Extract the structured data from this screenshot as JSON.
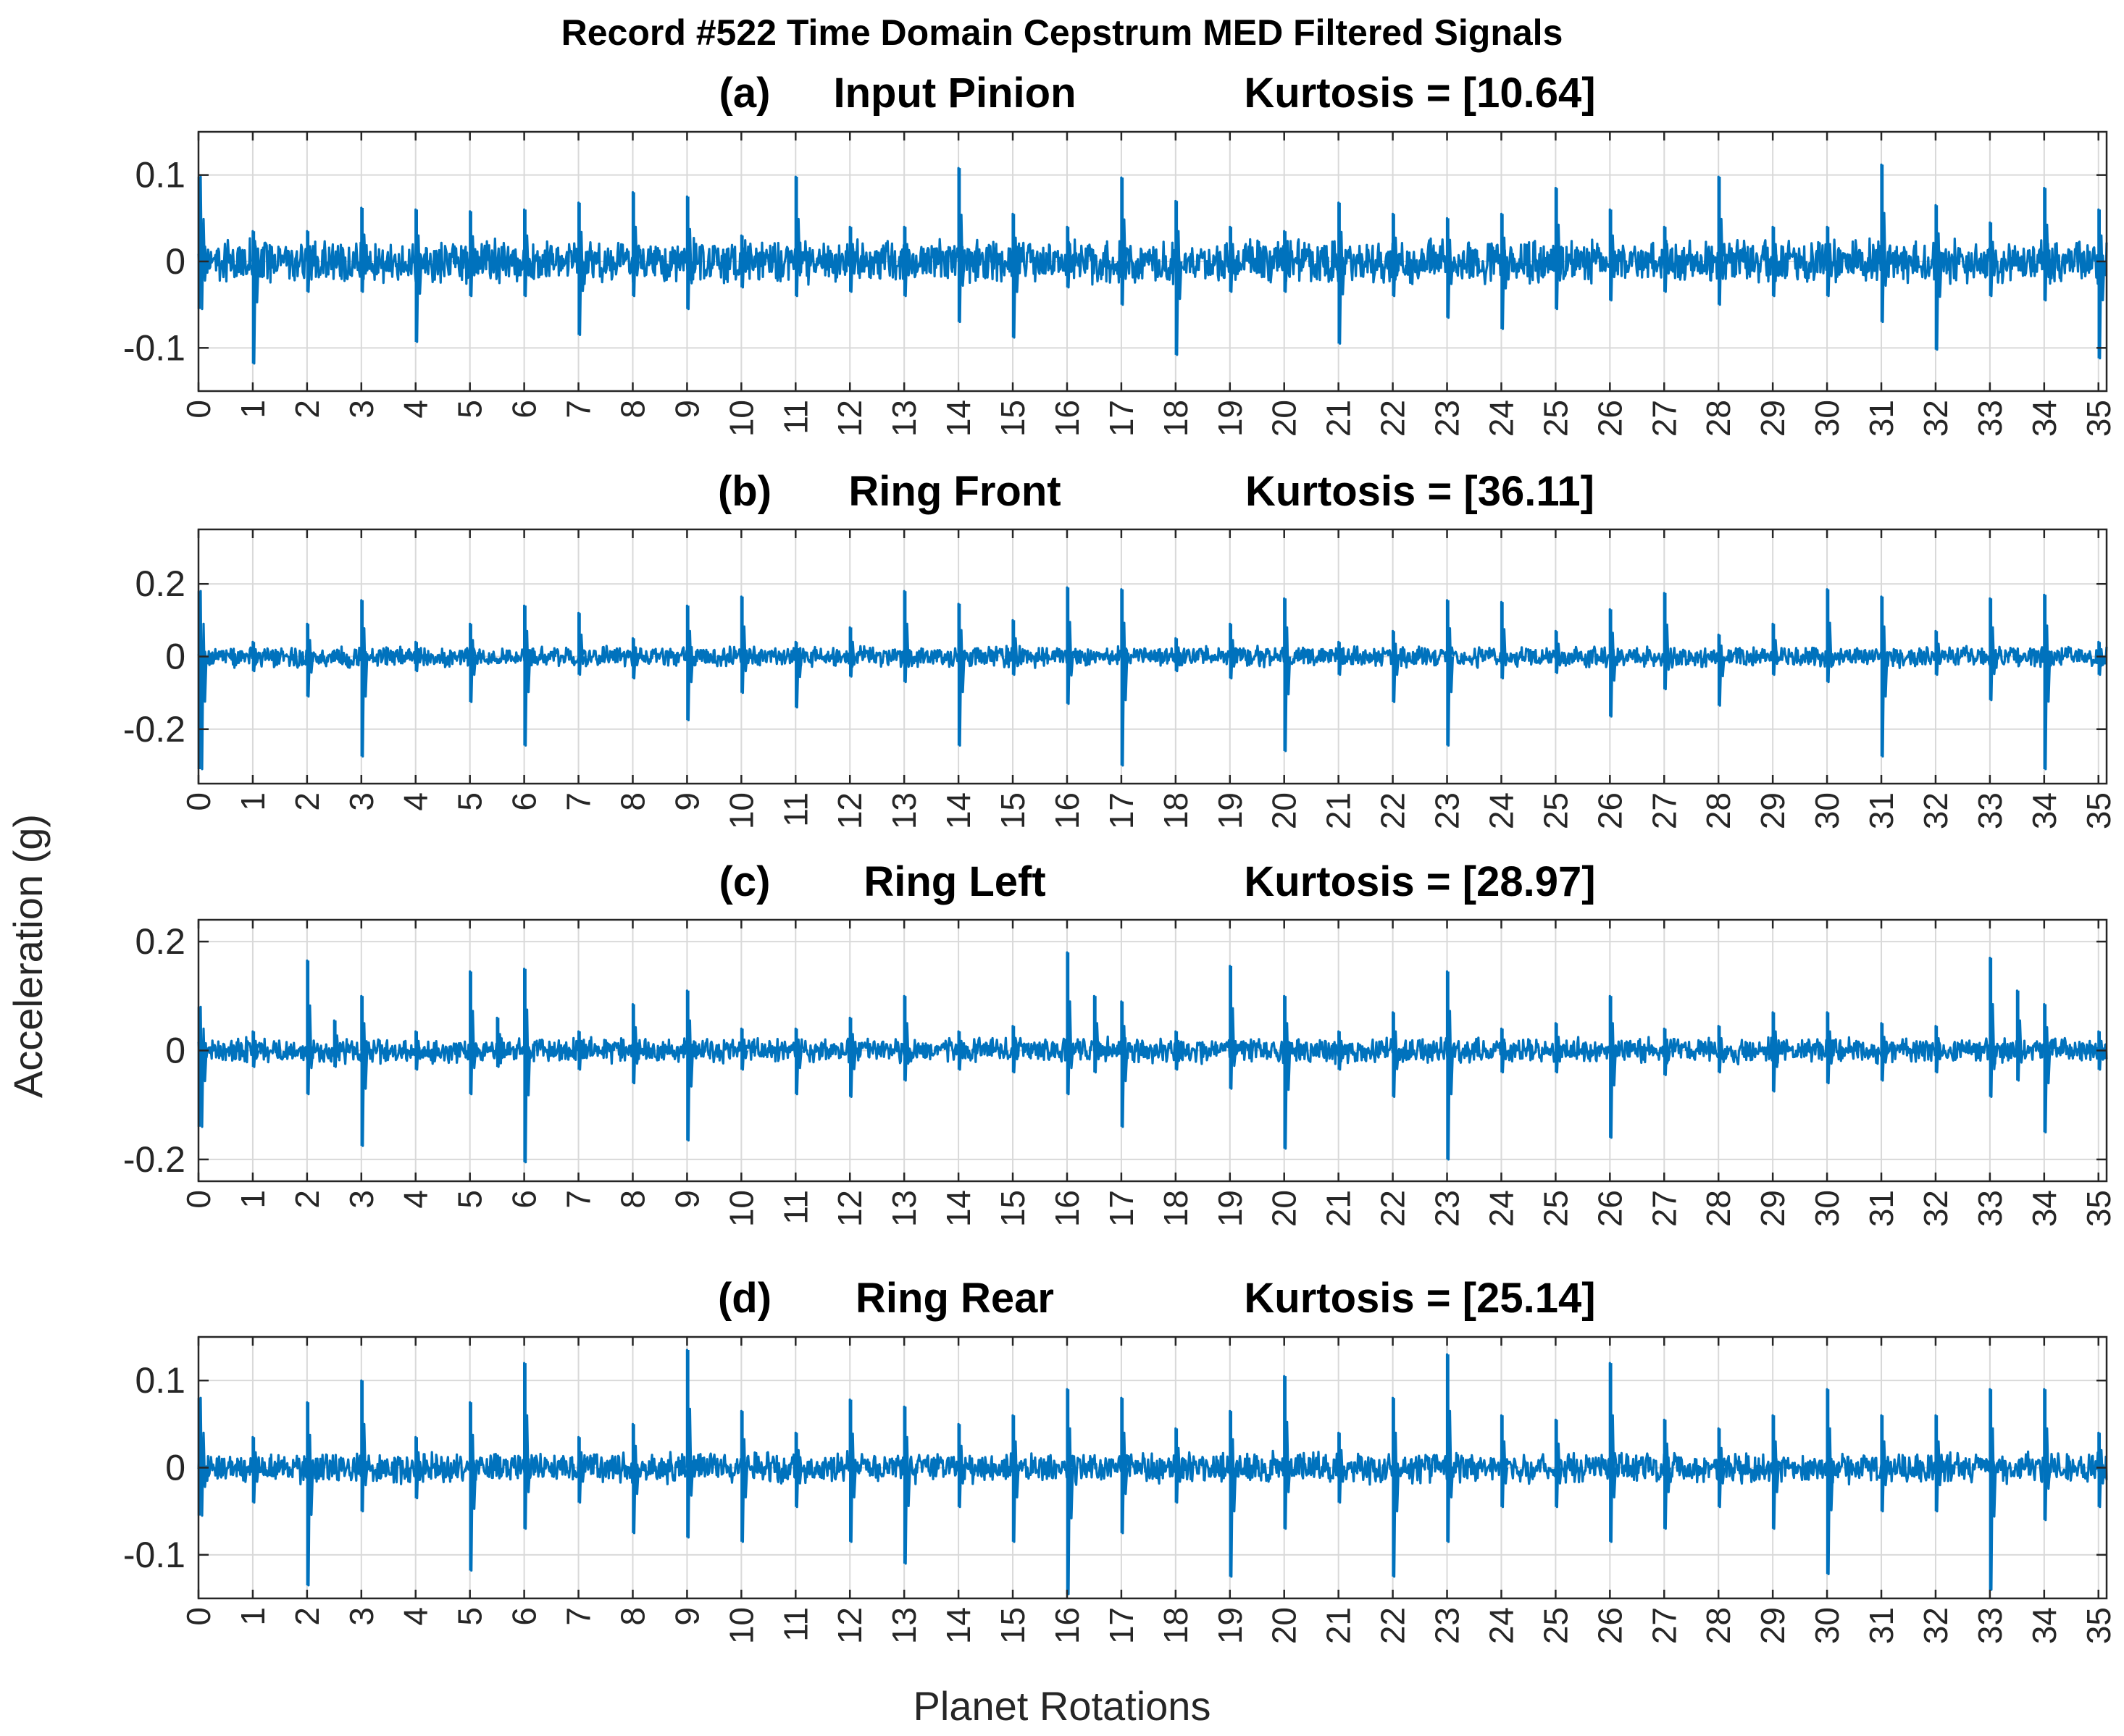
{
  "figure": {
    "title": "Record #522 Time Domain Cepstrum MED Filtered Signals",
    "xlabel": "Planet Rotations",
    "ylabel": "Acceleration (g)",
    "colors": {
      "series": "#0072BD",
      "grid": "#D9D9D9",
      "axis": "#262626",
      "text": "#262626"
    }
  },
  "chart_data": [
    {
      "type": "line",
      "panel_letter": "(a)",
      "channel": "Input Pinion",
      "kurtosis": "Kurtosis = [10.64]",
      "xlim": [
        0,
        35.15
      ],
      "ylim": [
        -0.15,
        0.15
      ],
      "xticks": [
        0,
        1,
        2,
        3,
        4,
        5,
        6,
        7,
        8,
        9,
        10,
        11,
        12,
        13,
        14,
        15,
        16,
        17,
        18,
        19,
        20,
        21,
        22,
        23,
        24,
        25,
        26,
        27,
        28,
        29,
        30,
        31,
        32,
        33,
        34,
        35
      ],
      "yticks": [
        -0.1,
        0,
        0.1
      ],
      "ytick_labels": [
        "-0.1",
        "0",
        "0.1"
      ],
      "grid": true,
      "noise_level": 0.028,
      "impulses": [
        {
          "x": 0.0,
          "pos": 0.098,
          "neg": -0.055
        },
        {
          "x": 1.0,
          "pos": 0.035,
          "neg": -0.118
        },
        {
          "x": 2.0,
          "pos": 0.035,
          "neg": -0.035
        },
        {
          "x": 3.0,
          "pos": 0.062,
          "neg": -0.035
        },
        {
          "x": 4.0,
          "pos": 0.06,
          "neg": -0.093
        },
        {
          "x": 5.0,
          "pos": 0.058,
          "neg": -0.04
        },
        {
          "x": 6.0,
          "pos": 0.06,
          "neg": -0.04
        },
        {
          "x": 7.0,
          "pos": 0.068,
          "neg": -0.085
        },
        {
          "x": 8.0,
          "pos": 0.08,
          "neg": -0.04
        },
        {
          "x": 9.0,
          "pos": 0.075,
          "neg": -0.055
        },
        {
          "x": 10.0,
          "pos": 0.03,
          "neg": -0.03
        },
        {
          "x": 11.0,
          "pos": 0.098,
          "neg": -0.04
        },
        {
          "x": 12.0,
          "pos": 0.04,
          "neg": -0.035
        },
        {
          "x": 13.0,
          "pos": 0.04,
          "neg": -0.04
        },
        {
          "x": 14.0,
          "pos": 0.108,
          "neg": -0.07
        },
        {
          "x": 15.0,
          "pos": 0.055,
          "neg": -0.088
        },
        {
          "x": 16.0,
          "pos": 0.04,
          "neg": -0.03
        },
        {
          "x": 17.0,
          "pos": 0.097,
          "neg": -0.05
        },
        {
          "x": 18.0,
          "pos": 0.07,
          "neg": -0.108
        },
        {
          "x": 19.0,
          "pos": 0.04,
          "neg": -0.035
        },
        {
          "x": 20.0,
          "pos": 0.035,
          "neg": -0.035
        },
        {
          "x": 21.0,
          "pos": 0.068,
          "neg": -0.095
        },
        {
          "x": 22.0,
          "pos": 0.055,
          "neg": -0.04
        },
        {
          "x": 23.0,
          "pos": 0.05,
          "neg": -0.065
        },
        {
          "x": 24.0,
          "pos": 0.055,
          "neg": -0.078
        },
        {
          "x": 25.0,
          "pos": 0.085,
          "neg": -0.055
        },
        {
          "x": 26.0,
          "pos": 0.06,
          "neg": -0.045
        },
        {
          "x": 27.0,
          "pos": 0.04,
          "neg": -0.035
        },
        {
          "x": 28.0,
          "pos": 0.098,
          "neg": -0.05
        },
        {
          "x": 29.0,
          "pos": 0.04,
          "neg": -0.04
        },
        {
          "x": 30.0,
          "pos": 0.04,
          "neg": -0.04
        },
        {
          "x": 31.0,
          "pos": 0.112,
          "neg": -0.07
        },
        {
          "x": 32.0,
          "pos": 0.065,
          "neg": -0.102
        },
        {
          "x": 33.0,
          "pos": 0.045,
          "neg": -0.04
        },
        {
          "x": 34.0,
          "pos": 0.085,
          "neg": -0.045
        },
        {
          "x": 35.0,
          "pos": 0.06,
          "neg": -0.112
        }
      ]
    },
    {
      "type": "line",
      "panel_letter": "(b)",
      "channel": "Ring Front",
      "kurtosis": "Kurtosis = [36.11]",
      "xlim": [
        0,
        35.15
      ],
      "ylim": [
        -0.35,
        0.35
      ],
      "xticks": [
        0,
        1,
        2,
        3,
        4,
        5,
        6,
        7,
        8,
        9,
        10,
        11,
        12,
        13,
        14,
        15,
        16,
        17,
        18,
        19,
        20,
        21,
        22,
        23,
        24,
        25,
        26,
        27,
        28,
        29,
        30,
        31,
        32,
        33,
        34,
        35
      ],
      "yticks": [
        -0.2,
        0,
        0.2
      ],
      "ytick_labels": [
        "-0.2",
        "0",
        "0.2"
      ],
      "grid": true,
      "noise_level": 0.032,
      "impulses": [
        {
          "x": 0.0,
          "pos": 0.18,
          "neg": -0.31
        },
        {
          "x": 1.0,
          "pos": 0.04,
          "neg": -0.04
        },
        {
          "x": 2.0,
          "pos": 0.09,
          "neg": -0.11
        },
        {
          "x": 3.0,
          "pos": 0.155,
          "neg": -0.275
        },
        {
          "x": 4.0,
          "pos": 0.04,
          "neg": -0.04
        },
        {
          "x": 5.0,
          "pos": 0.09,
          "neg": -0.125
        },
        {
          "x": 6.0,
          "pos": 0.14,
          "neg": -0.245
        },
        {
          "x": 7.0,
          "pos": 0.12,
          "neg": -0.05
        },
        {
          "x": 8.0,
          "pos": 0.05,
          "neg": -0.06
        },
        {
          "x": 9.0,
          "pos": 0.14,
          "neg": -0.175
        },
        {
          "x": 10.0,
          "pos": 0.165,
          "neg": -0.1
        },
        {
          "x": 11.0,
          "pos": 0.04,
          "neg": -0.14
        },
        {
          "x": 12.0,
          "pos": 0.08,
          "neg": -0.055
        },
        {
          "x": 13.0,
          "pos": 0.18,
          "neg": -0.07
        },
        {
          "x": 14.0,
          "pos": 0.145,
          "neg": -0.245
        },
        {
          "x": 15.0,
          "pos": 0.1,
          "neg": -0.05
        },
        {
          "x": 16.0,
          "pos": 0.19,
          "neg": -0.13
        },
        {
          "x": 17.0,
          "pos": 0.185,
          "neg": -0.3
        },
        {
          "x": 18.0,
          "pos": 0.05,
          "neg": -0.04
        },
        {
          "x": 19.0,
          "pos": 0.09,
          "neg": -0.06
        },
        {
          "x": 20.0,
          "pos": 0.16,
          "neg": -0.26
        },
        {
          "x": 21.0,
          "pos": 0.04,
          "neg": -0.05
        },
        {
          "x": 22.0,
          "pos": 0.07,
          "neg": -0.125
        },
        {
          "x": 23.0,
          "pos": 0.155,
          "neg": -0.245
        },
        {
          "x": 24.0,
          "pos": 0.15,
          "neg": -0.06
        },
        {
          "x": 25.0,
          "pos": 0.07,
          "neg": -0.045
        },
        {
          "x": 26.0,
          "pos": 0.13,
          "neg": -0.165
        },
        {
          "x": 27.0,
          "pos": 0.175,
          "neg": -0.09
        },
        {
          "x": 28.0,
          "pos": 0.06,
          "neg": -0.135
        },
        {
          "x": 29.0,
          "pos": 0.09,
          "neg": -0.05
        },
        {
          "x": 30.0,
          "pos": 0.185,
          "neg": -0.07
        },
        {
          "x": 31.0,
          "pos": 0.165,
          "neg": -0.275
        },
        {
          "x": 32.0,
          "pos": 0.07,
          "neg": -0.05
        },
        {
          "x": 33.0,
          "pos": 0.16,
          "neg": -0.12
        },
        {
          "x": 34.0,
          "pos": 0.17,
          "neg": -0.31
        },
        {
          "x": 35.0,
          "pos": 0.04,
          "neg": -0.05
        }
      ]
    },
    {
      "type": "line",
      "panel_letter": "(c)",
      "channel": "Ring Left",
      "kurtosis": "Kurtosis = [28.97]",
      "xlim": [
        0,
        35.15
      ],
      "ylim": [
        -0.24,
        0.24
      ],
      "xticks": [
        0,
        1,
        2,
        3,
        4,
        5,
        6,
        7,
        8,
        9,
        10,
        11,
        12,
        13,
        14,
        15,
        16,
        17,
        18,
        19,
        20,
        21,
        22,
        23,
        24,
        25,
        26,
        27,
        28,
        29,
        30,
        31,
        32,
        33,
        34,
        35
      ],
      "yticks": [
        -0.2,
        0,
        0.2
      ],
      "ytick_labels": [
        "-0.2",
        "0",
        "0.2"
      ],
      "grid": true,
      "noise_level": 0.026,
      "impulses": [
        {
          "x": 0.0,
          "pos": 0.08,
          "neg": -0.14
        },
        {
          "x": 1.0,
          "pos": 0.035,
          "neg": -0.03
        },
        {
          "x": 2.0,
          "pos": 0.165,
          "neg": -0.08
        },
        {
          "x": 2.5,
          "pos": 0.055,
          "neg": -0.03
        },
        {
          "x": 3.0,
          "pos": 0.1,
          "neg": -0.175
        },
        {
          "x": 4.0,
          "pos": 0.035,
          "neg": -0.035
        },
        {
          "x": 5.0,
          "pos": 0.145,
          "neg": -0.08
        },
        {
          "x": 5.5,
          "pos": 0.06,
          "neg": -0.03
        },
        {
          "x": 6.0,
          "pos": 0.15,
          "neg": -0.205
        },
        {
          "x": 7.0,
          "pos": 0.035,
          "neg": -0.035
        },
        {
          "x": 8.0,
          "pos": 0.085,
          "neg": -0.06
        },
        {
          "x": 9.0,
          "pos": 0.11,
          "neg": -0.165
        },
        {
          "x": 10.0,
          "pos": 0.04,
          "neg": -0.035
        },
        {
          "x": 11.0,
          "pos": 0.04,
          "neg": -0.08
        },
        {
          "x": 12.0,
          "pos": 0.06,
          "neg": -0.085
        },
        {
          "x": 13.0,
          "pos": 0.1,
          "neg": -0.055
        },
        {
          "x": 14.0,
          "pos": 0.035,
          "neg": -0.035
        },
        {
          "x": 15.0,
          "pos": 0.045,
          "neg": -0.04
        },
        {
          "x": 16.0,
          "pos": 0.18,
          "neg": -0.08
        },
        {
          "x": 16.5,
          "pos": 0.1,
          "neg": -0.04
        },
        {
          "x": 17.0,
          "pos": 0.09,
          "neg": -0.14
        },
        {
          "x": 18.0,
          "pos": 0.035,
          "neg": -0.035
        },
        {
          "x": 19.0,
          "pos": 0.155,
          "neg": -0.07
        },
        {
          "x": 20.0,
          "pos": 0.1,
          "neg": -0.18
        },
        {
          "x": 21.0,
          "pos": 0.035,
          "neg": -0.035
        },
        {
          "x": 22.0,
          "pos": 0.07,
          "neg": -0.085
        },
        {
          "x": 23.0,
          "pos": 0.145,
          "neg": -0.2
        },
        {
          "x": 24.0,
          "pos": 0.04,
          "neg": -0.04
        },
        {
          "x": 25.0,
          "pos": 0.05,
          "neg": -0.04
        },
        {
          "x": 26.0,
          "pos": 0.1,
          "neg": -0.16
        },
        {
          "x": 27.0,
          "pos": 0.04,
          "neg": -0.045
        },
        {
          "x": 28.0,
          "pos": 0.045,
          "neg": -0.04
        },
        {
          "x": 29.0,
          "pos": 0.07,
          "neg": -0.075
        },
        {
          "x": 30.0,
          "pos": 0.07,
          "neg": -0.06
        },
        {
          "x": 31.0,
          "pos": 0.05,
          "neg": -0.055
        },
        {
          "x": 32.0,
          "pos": 0.045,
          "neg": -0.04
        },
        {
          "x": 33.0,
          "pos": 0.17,
          "neg": -0.085
        },
        {
          "x": 33.5,
          "pos": 0.11,
          "neg": -0.055
        },
        {
          "x": 34.0,
          "pos": 0.085,
          "neg": -0.15
        },
        {
          "x": 35.0,
          "pos": 0.035,
          "neg": -0.035
        }
      ]
    },
    {
      "type": "line",
      "panel_letter": "(d)",
      "channel": "Ring Rear",
      "kurtosis": "Kurtosis = [25.14]",
      "xlim": [
        0,
        35.15
      ],
      "ylim": [
        -0.15,
        0.15
      ],
      "xticks": [
        0,
        1,
        2,
        3,
        4,
        5,
        6,
        7,
        8,
        9,
        10,
        11,
        12,
        13,
        14,
        15,
        16,
        17,
        18,
        19,
        20,
        21,
        22,
        23,
        24,
        25,
        26,
        27,
        28,
        29,
        30,
        31,
        32,
        33,
        34,
        35
      ],
      "yticks": [
        -0.1,
        0,
        0.1
      ],
      "ytick_labels": [
        "-0.1",
        "0",
        "0.1"
      ],
      "grid": true,
      "noise_level": 0.02,
      "impulses": [
        {
          "x": 0.0,
          "pos": 0.08,
          "neg": -0.055
        },
        {
          "x": 1.0,
          "pos": 0.035,
          "neg": -0.04
        },
        {
          "x": 2.0,
          "pos": 0.075,
          "neg": -0.135
        },
        {
          "x": 3.0,
          "pos": 0.1,
          "neg": -0.05
        },
        {
          "x": 4.0,
          "pos": 0.035,
          "neg": -0.035
        },
        {
          "x": 5.0,
          "pos": 0.075,
          "neg": -0.118
        },
        {
          "x": 6.0,
          "pos": 0.12,
          "neg": -0.07
        },
        {
          "x": 7.0,
          "pos": 0.035,
          "neg": -0.04
        },
        {
          "x": 8.0,
          "pos": 0.05,
          "neg": -0.075
        },
        {
          "x": 9.0,
          "pos": 0.135,
          "neg": -0.08
        },
        {
          "x": 10.0,
          "pos": 0.065,
          "neg": -0.085
        },
        {
          "x": 11.0,
          "pos": 0.04,
          "neg": -0.045
        },
        {
          "x": 12.0,
          "pos": 0.078,
          "neg": -0.085
        },
        {
          "x": 13.0,
          "pos": 0.07,
          "neg": -0.11
        },
        {
          "x": 14.0,
          "pos": 0.05,
          "neg": -0.045
        },
        {
          "x": 15.0,
          "pos": 0.06,
          "neg": -0.085
        },
        {
          "x": 16.0,
          "pos": 0.09,
          "neg": -0.145
        },
        {
          "x": 17.0,
          "pos": 0.08,
          "neg": -0.075
        },
        {
          "x": 18.0,
          "pos": 0.045,
          "neg": -0.04
        },
        {
          "x": 19.0,
          "pos": 0.065,
          "neg": -0.125
        },
        {
          "x": 20.0,
          "pos": 0.105,
          "neg": -0.07
        },
        {
          "x": 21.0,
          "pos": 0.04,
          "neg": -0.04
        },
        {
          "x": 22.0,
          "pos": 0.08,
          "neg": -0.125
        },
        {
          "x": 23.0,
          "pos": 0.13,
          "neg": -0.085
        },
        {
          "x": 24.0,
          "pos": 0.06,
          "neg": -0.045
        },
        {
          "x": 25.0,
          "pos": 0.055,
          "neg": -0.045
        },
        {
          "x": 26.0,
          "pos": 0.12,
          "neg": -0.085
        },
        {
          "x": 27.0,
          "pos": 0.055,
          "neg": -0.07
        },
        {
          "x": 28.0,
          "pos": 0.045,
          "neg": -0.045
        },
        {
          "x": 29.0,
          "pos": 0.06,
          "neg": -0.07
        },
        {
          "x": 30.0,
          "pos": 0.09,
          "neg": -0.122
        },
        {
          "x": 31.0,
          "pos": 0.06,
          "neg": -0.05
        },
        {
          "x": 32.0,
          "pos": 0.06,
          "neg": -0.05
        },
        {
          "x": 33.0,
          "pos": 0.09,
          "neg": -0.14
        },
        {
          "x": 34.0,
          "pos": 0.09,
          "neg": -0.06
        },
        {
          "x": 35.0,
          "pos": 0.04,
          "neg": -0.045
        }
      ]
    }
  ]
}
